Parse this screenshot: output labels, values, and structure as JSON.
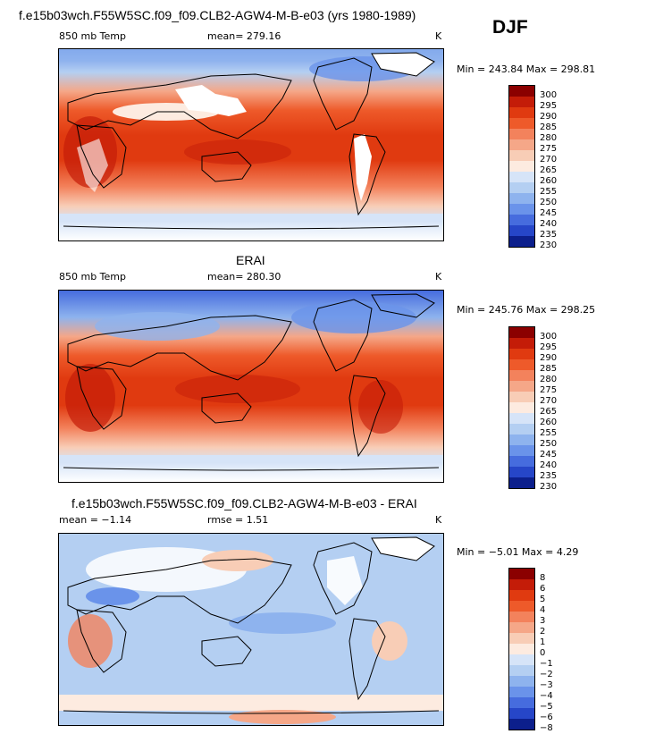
{
  "header": {
    "top_title": "f.e15b03wch.F55W5SC.f09_f09.CLB2-AGW4-M-B-e03 (yrs 1980-1989)",
    "season": "DJF"
  },
  "panels": [
    {
      "title": "",
      "var": "850 mb Temp",
      "mean_label": "mean= 279.16",
      "unit": "K",
      "minmax": "Min = 243.84 Max = 298.81",
      "levels": [
        "300",
        "295",
        "290",
        "285",
        "280",
        "275",
        "270",
        "265",
        "260",
        "255",
        "250",
        "245",
        "240",
        "235",
        "230"
      ],
      "colors": [
        "#8b0000",
        "#c41c08",
        "#e03a10",
        "#ee5a2a",
        "#f3825c",
        "#f5a788",
        "#f8cdb6",
        "#fdebe0",
        "#d6e4f8",
        "#b4cff2",
        "#8eb3ee",
        "#6a93ea",
        "#466cde",
        "#2646c8",
        "#0c1f8c"
      ]
    },
    {
      "title": "ERAI",
      "var": "850 mb Temp",
      "mean_label": "mean= 280.30",
      "unit": "K",
      "minmax": "Min = 245.76 Max = 298.25",
      "levels": [
        "300",
        "295",
        "290",
        "285",
        "280",
        "275",
        "270",
        "265",
        "260",
        "255",
        "250",
        "245",
        "240",
        "235",
        "230"
      ],
      "colors": [
        "#8b0000",
        "#c41c08",
        "#e03a10",
        "#ee5a2a",
        "#f3825c",
        "#f5a788",
        "#f8cdb6",
        "#fdebe0",
        "#d6e4f8",
        "#b4cff2",
        "#8eb3ee",
        "#6a93ea",
        "#466cde",
        "#2646c8",
        "#0c1f8c"
      ]
    },
    {
      "title": "f.e15b03wch.F55W5SC.f09_f09.CLB2-AGW4-M-B-e03 - ERAI",
      "var": "mean =  −1.14",
      "mean_label": "rmse =   1.51",
      "unit": "K",
      "minmax": "Min =  −5.01 Max =   4.29",
      "levels": [
        "8",
        "6",
        "5",
        "4",
        "3",
        "2",
        "1",
        "0",
        "−1",
        "−2",
        "−3",
        "−4",
        "−5",
        "−6",
        "−8"
      ],
      "colors": [
        "#8b0000",
        "#c41c08",
        "#e03a10",
        "#ee5a2a",
        "#f3825c",
        "#f5a788",
        "#f8cdb6",
        "#fdebe0",
        "#d6e4f8",
        "#b4cff2",
        "#8eb3ee",
        "#6a93ea",
        "#466cde",
        "#2646c8",
        "#0c1f8c"
      ]
    }
  ]
}
